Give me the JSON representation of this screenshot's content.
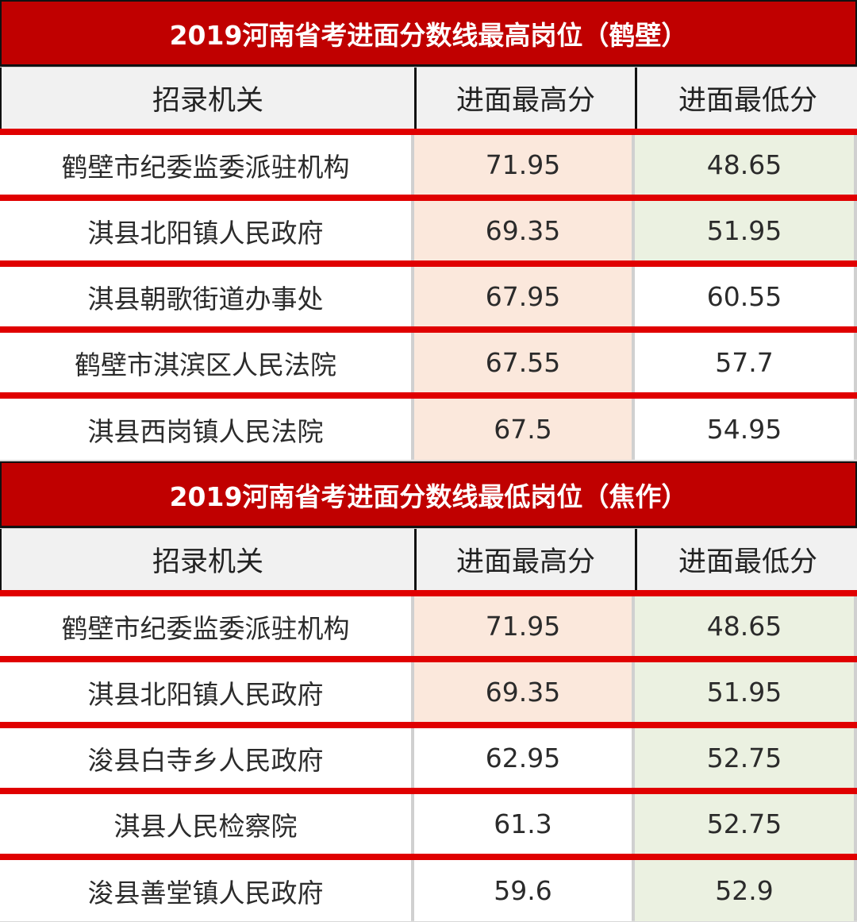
{
  "tables": [
    {
      "title": "2019河南省考进面分数线最高岗位（鹤壁）",
      "headers": [
        "招录机关",
        "进面最高分",
        "进面最低分"
      ],
      "rows": [
        [
          "鹤壁市纪委监委派驻机构",
          "71.95",
          "48.65"
        ],
        [
          "淇县北阳镇人民政府",
          "69.35",
          "51.95"
        ],
        [
          "淇县朝歌街道办事处",
          "67.95",
          "60.55"
        ],
        [
          "鹤壁市淇滨区人民法院",
          "67.55",
          "57.7"
        ],
        [
          "淇县西岗镇人民法院",
          "67.5",
          "54.95"
        ]
      ]
    },
    {
      "title": "2019河南省考进面分数线最低岗位（焦作）",
      "headers": [
        "招录机关",
        "进面最高分",
        "进面最低分"
      ],
      "rows": [
        [
          "鹤壁市纪委监委派驻机构",
          "71.95",
          "48.65"
        ],
        [
          "淇县北阳镇人民政府",
          "69.35",
          "51.95"
        ],
        [
          "浚县白寺乡人民政府",
          "62.95",
          "52.75"
        ],
        [
          "淇县人民检察院",
          "61.3",
          "52.75"
        ],
        [
          "浚县善堂镇人民政府",
          "59.6",
          "52.9"
        ]
      ]
    }
  ],
  "colors": {
    "title_bg": "#c00000",
    "row_divider": "#e00000",
    "highlight_high": "#fbe8dc",
    "highlight_low": "#ebf1e1"
  }
}
